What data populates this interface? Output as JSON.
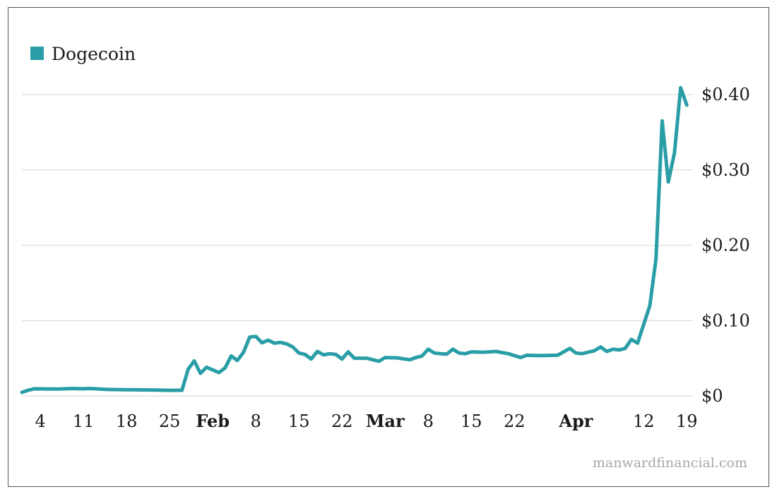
{
  "chart_data": {
    "type": "line",
    "legend": {
      "label": "Dogecoin",
      "placement": "top-left"
    },
    "watermark": "manwardfinancial.com",
    "colors": {
      "series": "#2a9ea6",
      "grid": "#dddddd",
      "text": "#1a1a1a",
      "watermark": "#a8a8a8"
    },
    "y_axis": {
      "position": "right",
      "ylim": [
        0,
        0.4
      ],
      "ticks": [
        0,
        0.1,
        0.2,
        0.3,
        0.4
      ],
      "tick_labels": [
        "$0",
        "$0.10",
        "$0.20",
        "$0.30",
        "$0.40"
      ],
      "grid": true
    },
    "x_axis": {
      "xlim": [
        "2021-01-01",
        "2021-04-20"
      ],
      "ticks": [
        {
          "date": "2021-01-04",
          "label": "4",
          "major": false
        },
        {
          "date": "2021-01-11",
          "label": "11",
          "major": false
        },
        {
          "date": "2021-01-18",
          "label": "18",
          "major": false
        },
        {
          "date": "2021-01-25",
          "label": "25",
          "major": false
        },
        {
          "date": "2021-02-01",
          "label": "Feb",
          "major": true
        },
        {
          "date": "2021-02-08",
          "label": "8",
          "major": false
        },
        {
          "date": "2021-02-15",
          "label": "15",
          "major": false
        },
        {
          "date": "2021-02-22",
          "label": "22",
          "major": false
        },
        {
          "date": "2021-03-01",
          "label": "Mar",
          "major": true
        },
        {
          "date": "2021-03-08",
          "label": "8",
          "major": false
        },
        {
          "date": "2021-03-15",
          "label": "15",
          "major": false
        },
        {
          "date": "2021-03-22",
          "label": "22",
          "major": false
        },
        {
          "date": "2021-04-01",
          "label": "Apr",
          "major": true
        },
        {
          "date": "2021-04-12",
          "label": "12",
          "major": false
        },
        {
          "date": "2021-04-19",
          "label": "19",
          "major": false
        }
      ]
    },
    "series": [
      {
        "name": "Dogecoin",
        "points": [
          [
            "2021-01-01",
            0.0047
          ],
          [
            "2021-01-02",
            0.0075
          ],
          [
            "2021-01-03",
            0.0095
          ],
          [
            "2021-01-05",
            0.0093
          ],
          [
            "2021-01-07",
            0.0092
          ],
          [
            "2021-01-09",
            0.0098
          ],
          [
            "2021-01-11",
            0.0095
          ],
          [
            "2021-01-12",
            0.0098
          ],
          [
            "2021-01-15",
            0.0085
          ],
          [
            "2021-01-18",
            0.0082
          ],
          [
            "2021-01-21",
            0.008
          ],
          [
            "2021-01-23",
            0.0077
          ],
          [
            "2021-01-25",
            0.0074
          ],
          [
            "2021-01-27",
            0.0075
          ],
          [
            "2021-01-28",
            0.0353
          ],
          [
            "2021-01-29",
            0.0465
          ],
          [
            "2021-01-30",
            0.03
          ],
          [
            "2021-01-31",
            0.038
          ],
          [
            "2021-02-01",
            0.0345
          ],
          [
            "2021-02-02",
            0.031
          ],
          [
            "2021-02-03",
            0.037
          ],
          [
            "2021-02-04",
            0.053
          ],
          [
            "2021-02-05",
            0.047
          ],
          [
            "2021-02-06",
            0.058
          ],
          [
            "2021-02-07",
            0.078
          ],
          [
            "2021-02-08",
            0.079
          ],
          [
            "2021-02-09",
            0.0705
          ],
          [
            "2021-02-10",
            0.074
          ],
          [
            "2021-02-11",
            0.07
          ],
          [
            "2021-02-12",
            0.071
          ],
          [
            "2021-02-13",
            0.069
          ],
          [
            "2021-02-14",
            0.065
          ],
          [
            "2021-02-15",
            0.057
          ],
          [
            "2021-02-16",
            0.055
          ],
          [
            "2021-02-17",
            0.049
          ],
          [
            "2021-02-18",
            0.059
          ],
          [
            "2021-02-19",
            0.0545
          ],
          [
            "2021-02-20",
            0.056
          ],
          [
            "2021-02-21",
            0.055
          ],
          [
            "2021-02-22",
            0.049
          ],
          [
            "2021-02-23",
            0.0585
          ],
          [
            "2021-02-24",
            0.05
          ],
          [
            "2021-02-26",
            0.05
          ],
          [
            "2021-02-28",
            0.046
          ],
          [
            "2021-03-01",
            0.051
          ],
          [
            "2021-03-03",
            0.0505
          ],
          [
            "2021-03-05",
            0.048
          ],
          [
            "2021-03-06",
            0.051
          ],
          [
            "2021-03-07",
            0.053
          ],
          [
            "2021-03-08",
            0.062
          ],
          [
            "2021-03-09",
            0.057
          ],
          [
            "2021-03-10",
            0.056
          ],
          [
            "2021-03-11",
            0.0555
          ],
          [
            "2021-03-12",
            0.062
          ],
          [
            "2021-03-13",
            0.057
          ],
          [
            "2021-03-14",
            0.056
          ],
          [
            "2021-03-15",
            0.0585
          ],
          [
            "2021-03-17",
            0.058
          ],
          [
            "2021-03-19",
            0.059
          ],
          [
            "2021-03-21",
            0.056
          ],
          [
            "2021-03-23",
            0.051
          ],
          [
            "2021-03-24",
            0.054
          ],
          [
            "2021-03-26",
            0.0535
          ],
          [
            "2021-03-29",
            0.054
          ],
          [
            "2021-03-31",
            0.063
          ],
          [
            "2021-04-01",
            0.057
          ],
          [
            "2021-04-02",
            0.056
          ],
          [
            "2021-04-03",
            0.058
          ],
          [
            "2021-04-04",
            0.06
          ],
          [
            "2021-04-05",
            0.065
          ],
          [
            "2021-04-06",
            0.059
          ],
          [
            "2021-04-07",
            0.062
          ],
          [
            "2021-04-08",
            0.061
          ],
          [
            "2021-04-09",
            0.063
          ],
          [
            "2021-04-10",
            0.075
          ],
          [
            "2021-04-11",
            0.07
          ],
          [
            "2021-04-13",
            0.12
          ],
          [
            "2021-04-14",
            0.182
          ],
          [
            "2021-04-15",
            0.365
          ],
          [
            "2021-04-16",
            0.284
          ],
          [
            "2021-04-17",
            0.323
          ],
          [
            "2021-04-18",
            0.409
          ],
          [
            "2021-04-19",
            0.386
          ]
        ]
      }
    ]
  }
}
